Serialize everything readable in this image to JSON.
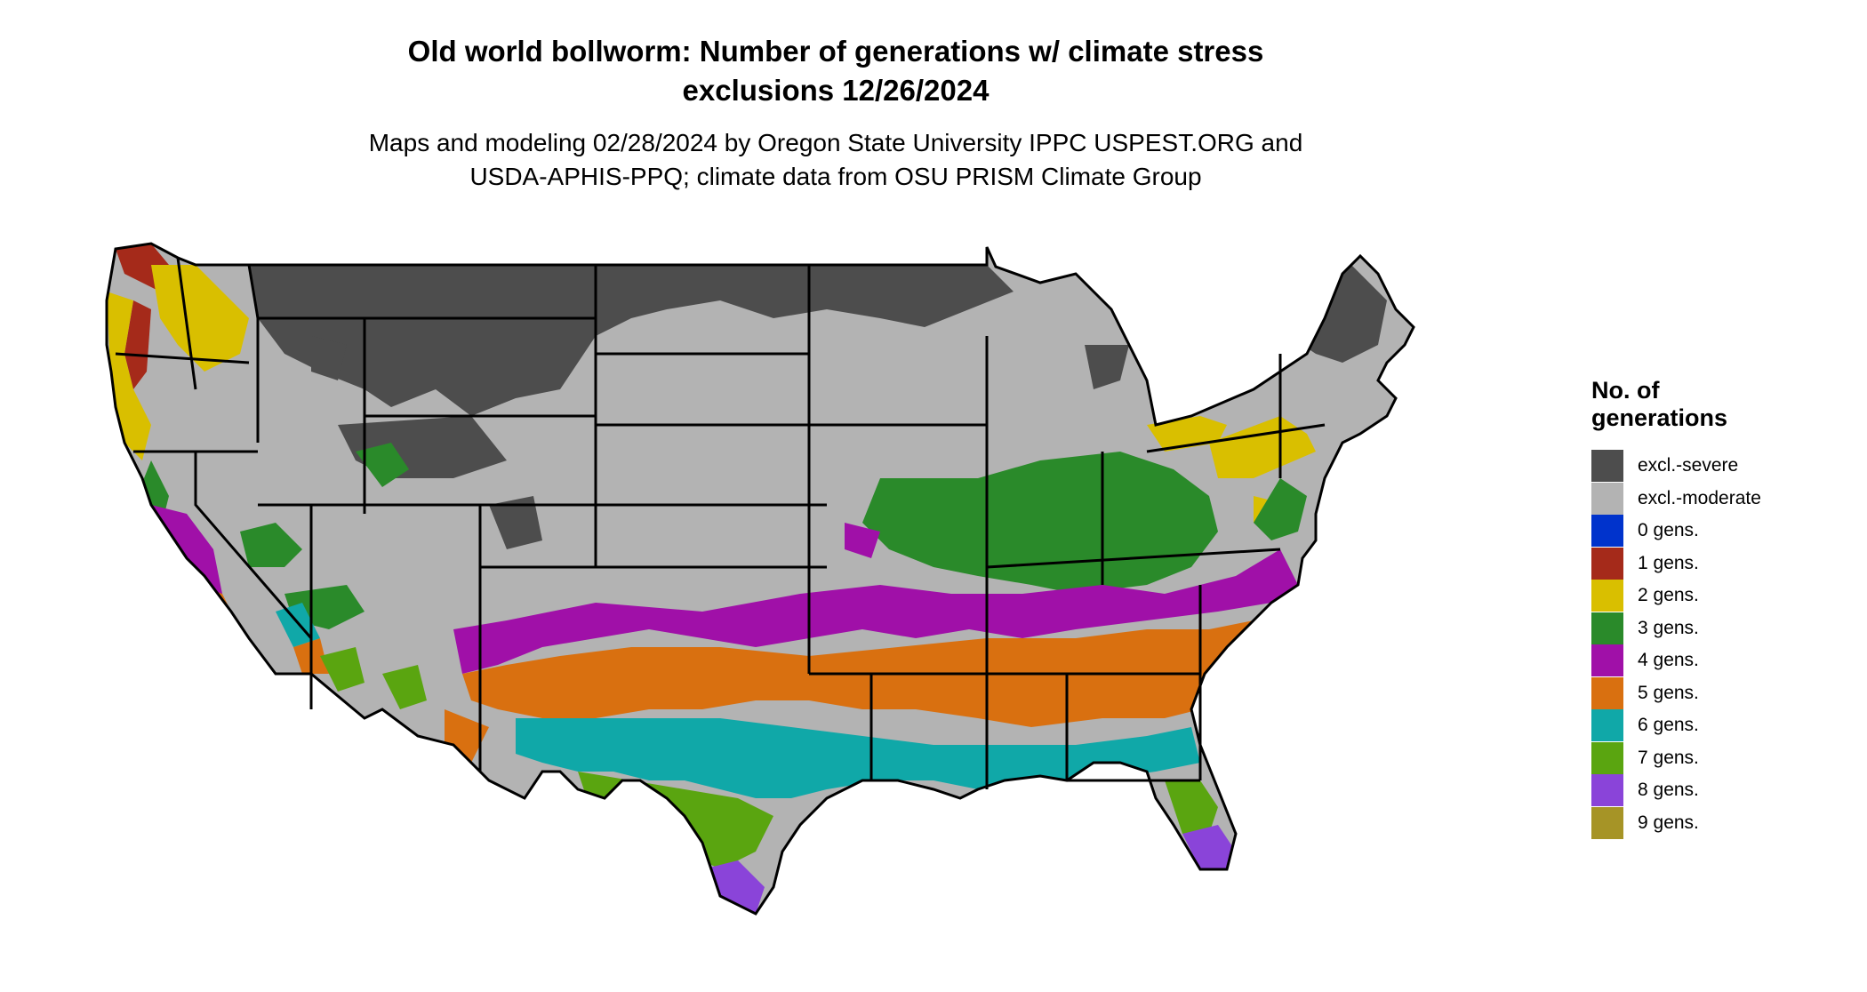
{
  "title": {
    "line1": "Old world bollworm: Number of generations w/ climate stress",
    "line2": "exclusions 12/26/2024"
  },
  "subtitle": {
    "line1": "Maps and modeling 02/28/2024 by Oregon State University IPPC USPEST.ORG and",
    "line2": "USDA-APHIS-PPQ; climate data from OSU PRISM Climate Group"
  },
  "legend": {
    "title_line1": "No. of",
    "title_line2": "generations",
    "items": [
      {
        "label": "excl.-severe",
        "color": "#4d4d4d"
      },
      {
        "label": "excl.-moderate",
        "color": "#b3b3b3"
      },
      {
        "label": "0 gens.",
        "color": "#0033cc"
      },
      {
        "label": "1 gens.",
        "color": "#a52a1a"
      },
      {
        "label": "2 gens.",
        "color": "#d9bf00"
      },
      {
        "label": "3 gens.",
        "color": "#2a8a2a"
      },
      {
        "label": "4 gens.",
        "color": "#a010a8"
      },
      {
        "label": "5 gens.",
        "color": "#d97010"
      },
      {
        "label": "6 gens.",
        "color": "#10a8a8"
      },
      {
        "label": "7 gens.",
        "color": "#5aa510"
      },
      {
        "label": "8 gens.",
        "color": "#8a44d9"
      },
      {
        "label": "9 gens.",
        "color": "#a69426"
      }
    ]
  }
}
